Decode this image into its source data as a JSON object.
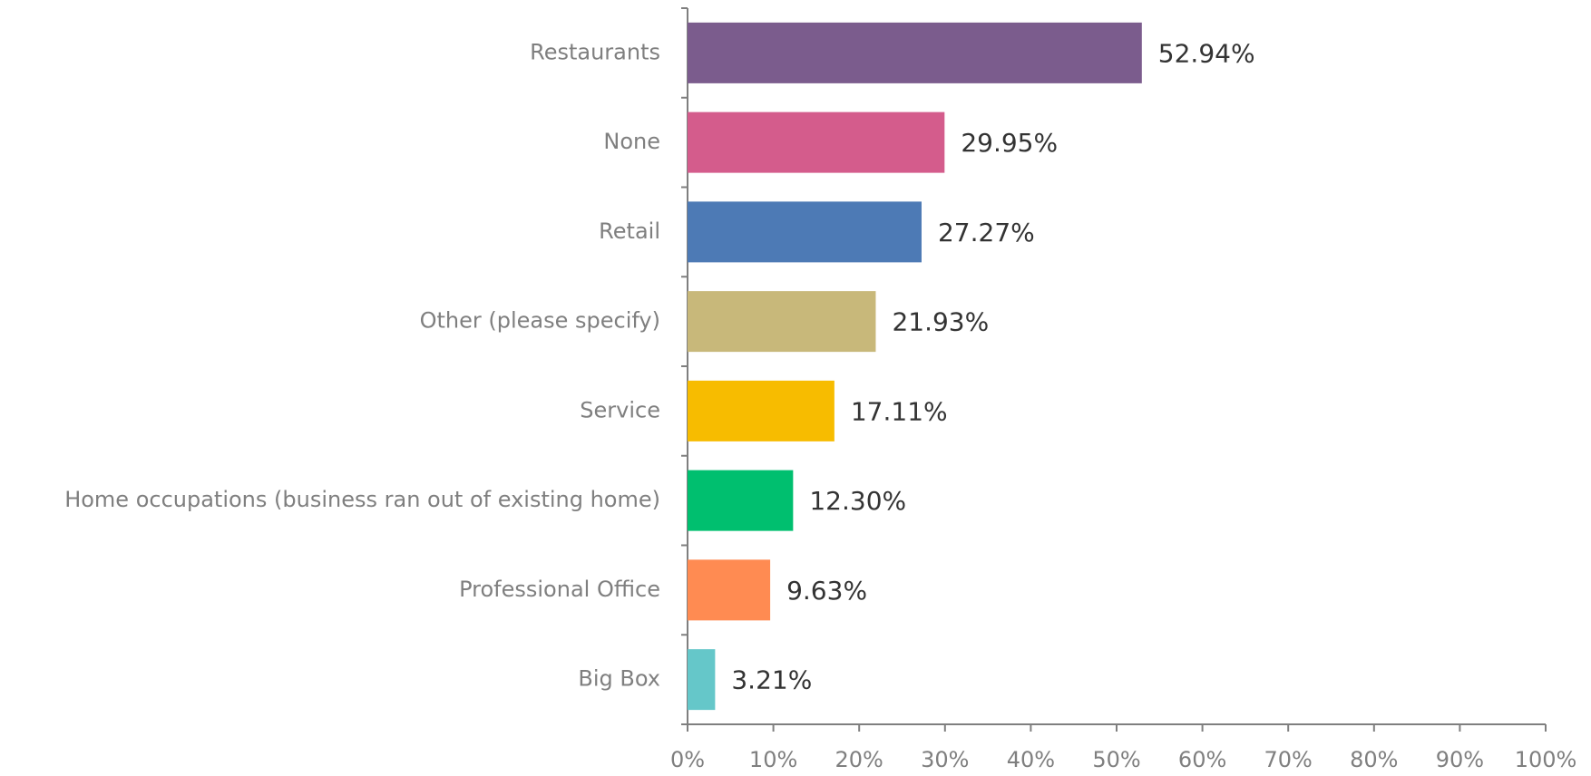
{
  "chart_data": {
    "type": "bar",
    "orientation": "horizontal",
    "categories": [
      "Restaurants",
      "None",
      "Retail",
      "Other (please specify)",
      "Service",
      "Home occupations (business ran out of existing home)",
      "Professional Office",
      "Big Box"
    ],
    "values": [
      52.94,
      29.95,
      27.27,
      21.93,
      17.11,
      12.3,
      9.63,
      3.21
    ],
    "value_labels": [
      "52.94%",
      "29.95%",
      "27.27%",
      "21.93%",
      "17.11%",
      "12.30%",
      "9.63%",
      "3.21%"
    ],
    "colors": [
      "#7b5c8d",
      "#d45c8c",
      "#4d7ab5",
      "#c8b87a",
      "#f7bc00",
      "#00bf6f",
      "#ff8b52",
      "#65c7c9"
    ],
    "xlim": [
      0,
      100
    ],
    "xticks": [
      {
        "value": 0,
        "label": "0%"
      },
      {
        "value": 10,
        "label": "10%"
      },
      {
        "value": 20,
        "label": "20%"
      },
      {
        "value": 30,
        "label": "30%"
      },
      {
        "value": 40,
        "label": "40%"
      },
      {
        "value": 50,
        "label": "50%"
      },
      {
        "value": 60,
        "label": "60%"
      },
      {
        "value": 70,
        "label": "70%"
      },
      {
        "value": 80,
        "label": "80%"
      },
      {
        "value": 90,
        "label": "90%"
      },
      {
        "value": 100,
        "label": "100%"
      }
    ],
    "grid": false
  }
}
